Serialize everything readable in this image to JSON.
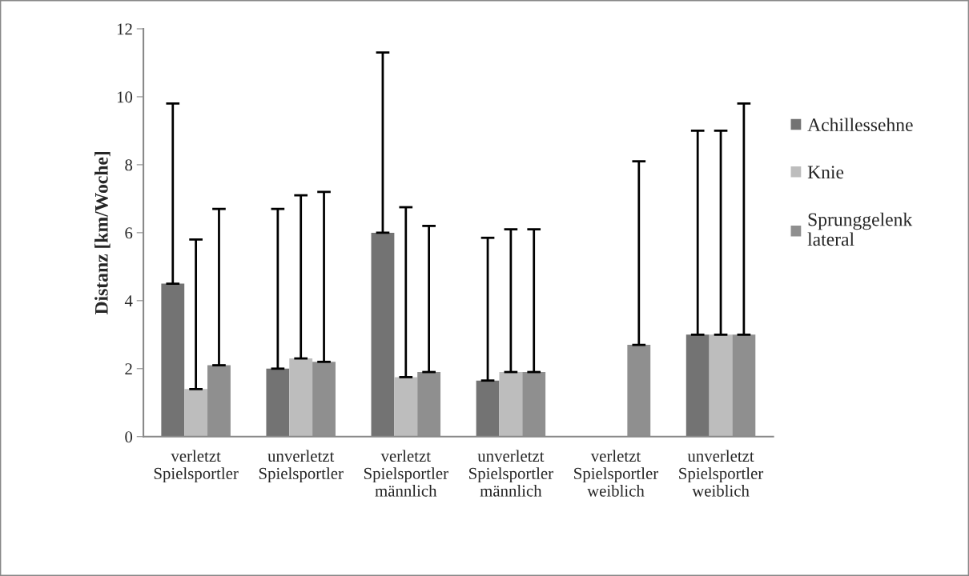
{
  "chart_data": {
    "type": "bar",
    "ylabel": "Distanz [km/Woche]",
    "categories": [
      "verletzt\nSpielsportler",
      "unverletzt\nSpielsportler",
      "verletzt\nSpielsportler\nmännlich",
      "unverletzt\nSpielsportler\nmännlich",
      "verletzt\nSpielsportler\nweiblich",
      "unverletzt\nSpielsportler\nweiblich"
    ],
    "series": [
      {
        "name": "Achillessehne",
        "color": "#737373",
        "values": [
          4.5,
          2.0,
          6.0,
          1.65,
          0,
          3.0
        ],
        "errors": [
          [
            4.5,
            9.8
          ],
          [
            2.0,
            6.7
          ],
          [
            6.0,
            11.3
          ],
          [
            1.65,
            5.85
          ],
          null,
          [
            3.0,
            9.0
          ]
        ]
      },
      {
        "name": "Knie",
        "color": "#bdbdbd",
        "values": [
          1.4,
          2.3,
          1.75,
          1.9,
          0,
          3.0
        ],
        "errors": [
          [
            1.4,
            5.8
          ],
          [
            2.3,
            7.1
          ],
          [
            1.75,
            6.75
          ],
          [
            1.9,
            6.1
          ],
          null,
          [
            3.0,
            9.0
          ]
        ]
      },
      {
        "name": "Sprunggelenk\nlateral",
        "color": "#8f8f8f",
        "values": [
          2.1,
          2.2,
          1.9,
          1.9,
          2.7,
          3.0
        ],
        "errors": [
          [
            2.1,
            6.7
          ],
          [
            2.2,
            7.2
          ],
          [
            1.9,
            6.2
          ],
          [
            1.9,
            6.1
          ],
          [
            2.7,
            8.1
          ],
          [
            3.0,
            9.8
          ]
        ]
      }
    ],
    "ylim": [
      0,
      12
    ],
    "yticks": [
      0,
      2,
      4,
      6,
      8,
      10,
      12
    ],
    "grid": false,
    "legend": "right"
  }
}
